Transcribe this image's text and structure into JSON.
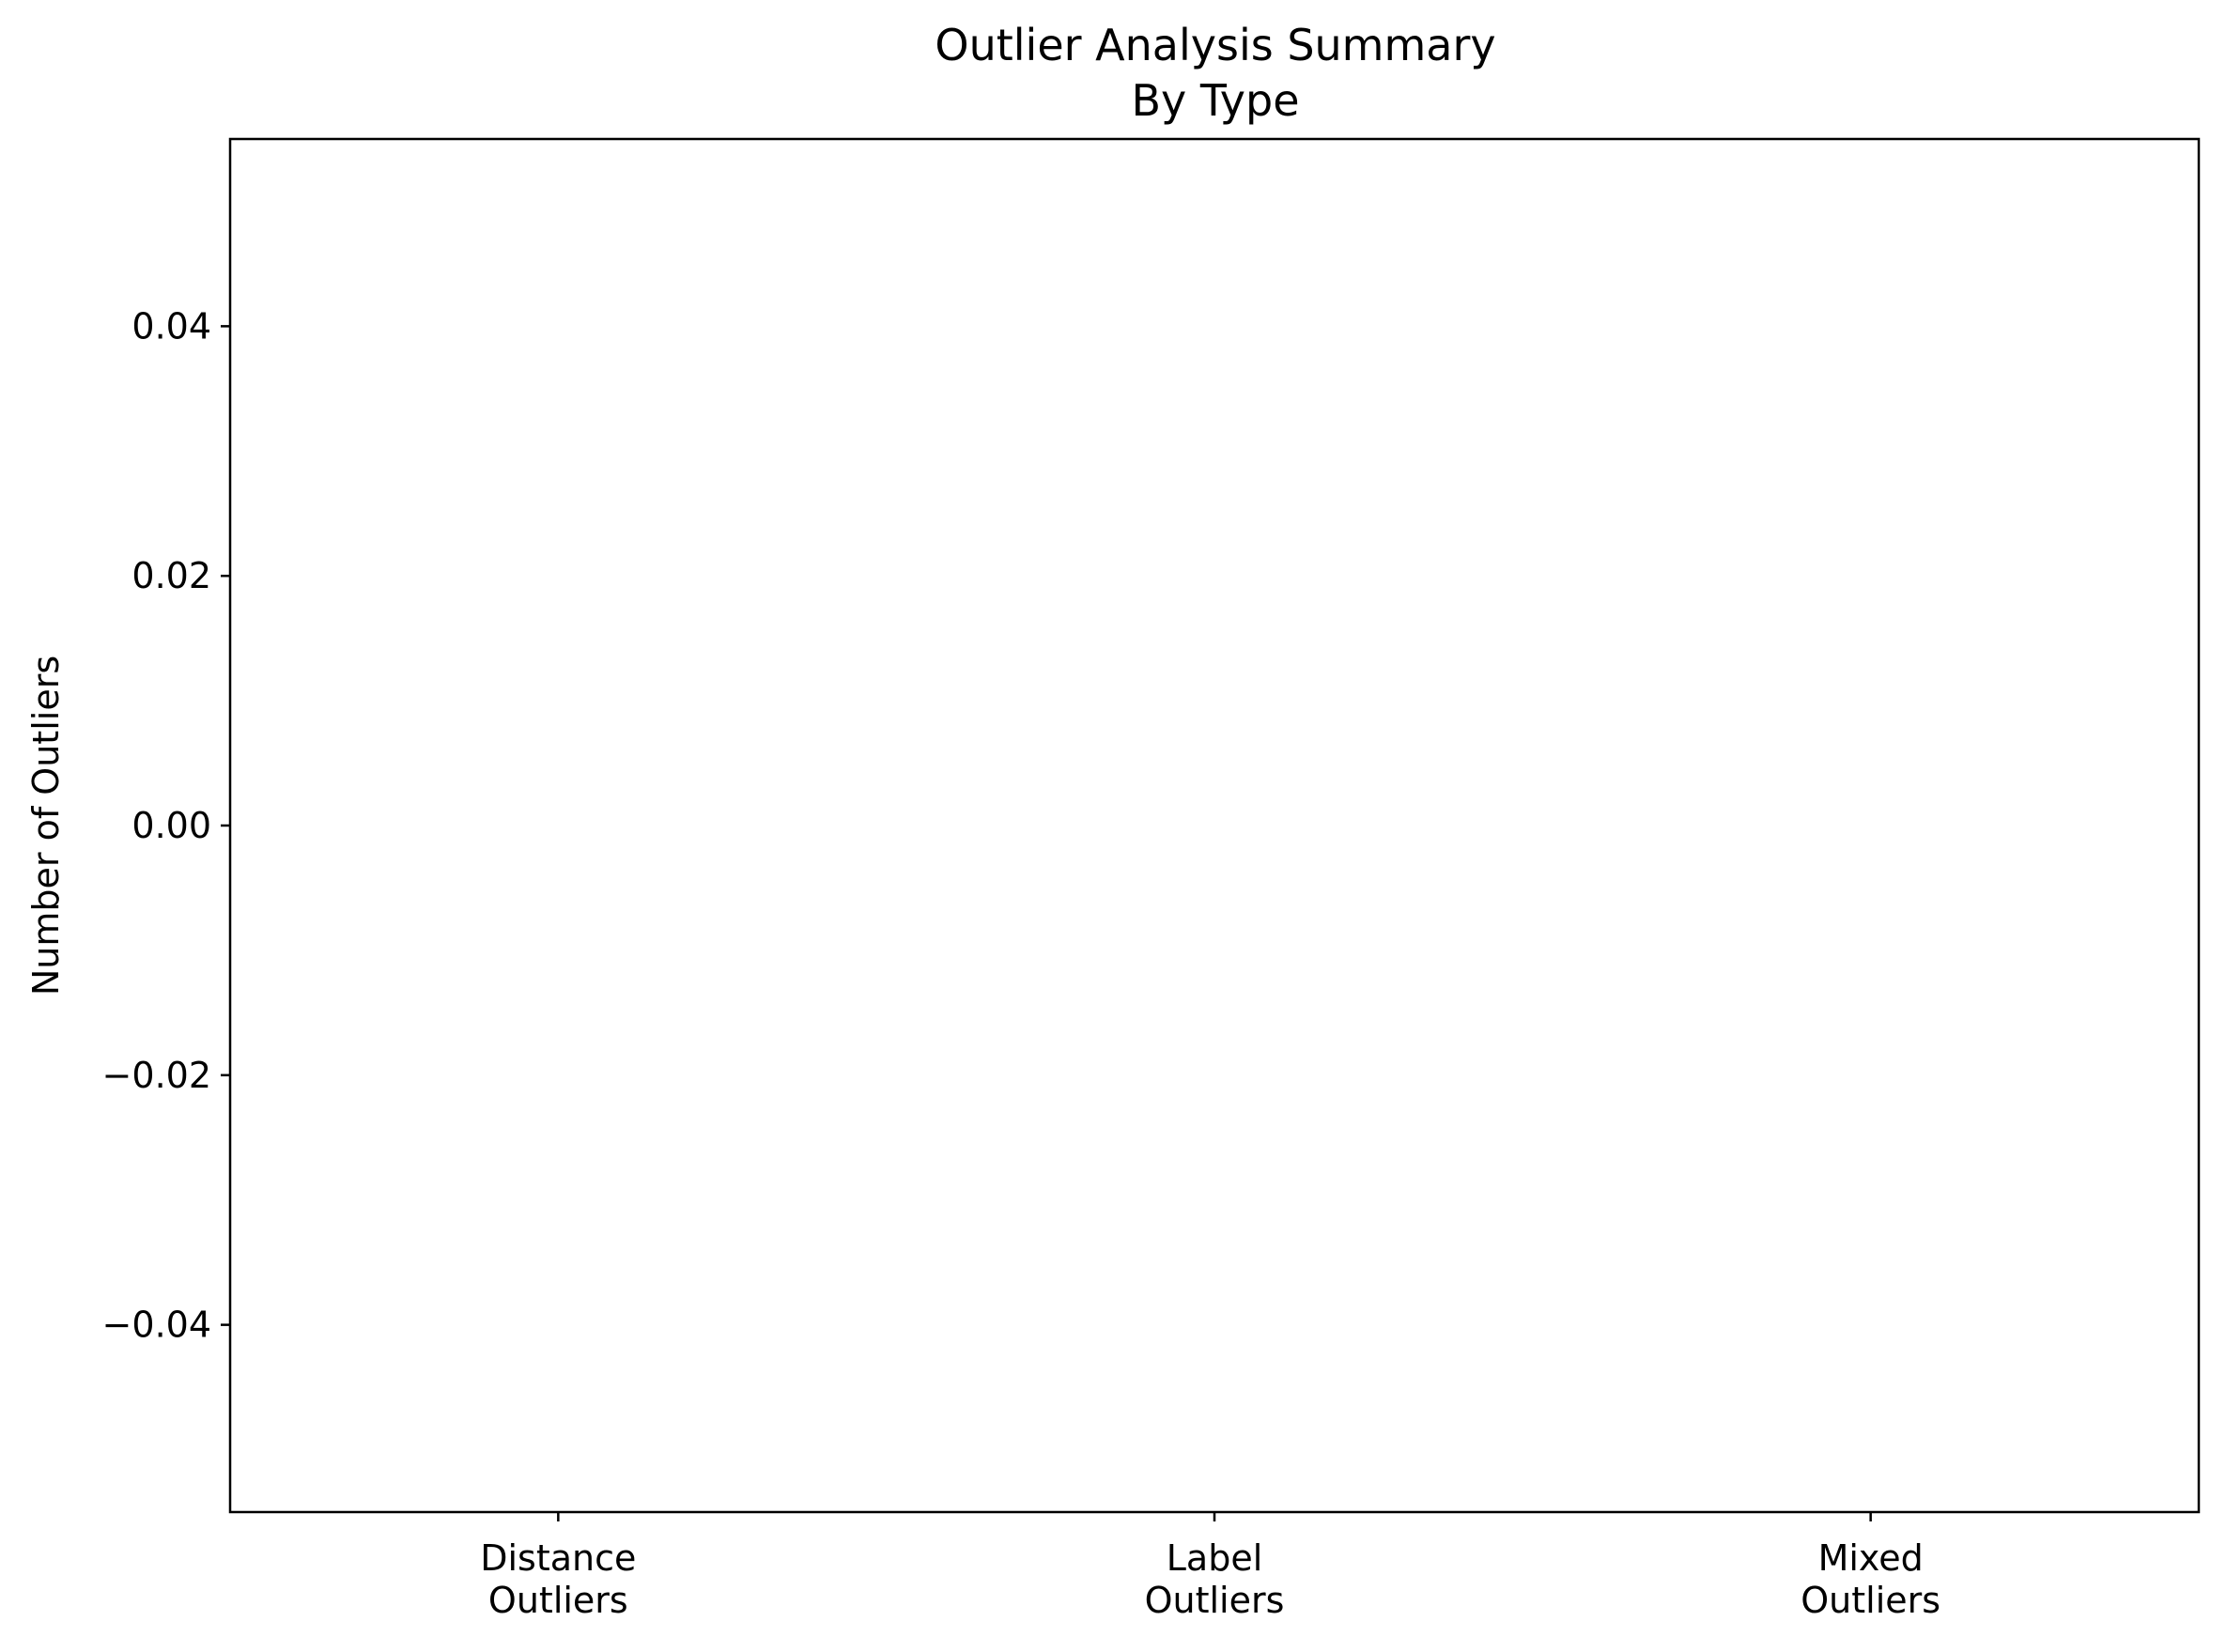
{
  "chart_data": {
    "type": "bar",
    "title": "Outlier Analysis Summary",
    "subtitle": "By Type",
    "xlabel": "",
    "ylabel": "Number of Outliers",
    "categories": [
      [
        "Distance",
        "Outliers"
      ],
      [
        "Label",
        "Outliers"
      ],
      [
        "Mixed",
        "Outliers"
      ]
    ],
    "values": [
      0,
      0,
      0
    ],
    "ylim": [
      -0.055,
      0.055
    ],
    "yticks": [
      -0.04,
      -0.02,
      0.0,
      0.02,
      0.04
    ],
    "ytick_labels": [
      "−0.04",
      "−0.02",
      "0.00",
      "0.02",
      "0.04"
    ],
    "grid": false,
    "legend": "none",
    "colors": {
      "bar": "#1f77b4",
      "axis": "#000000",
      "background": "#ffffff"
    }
  }
}
